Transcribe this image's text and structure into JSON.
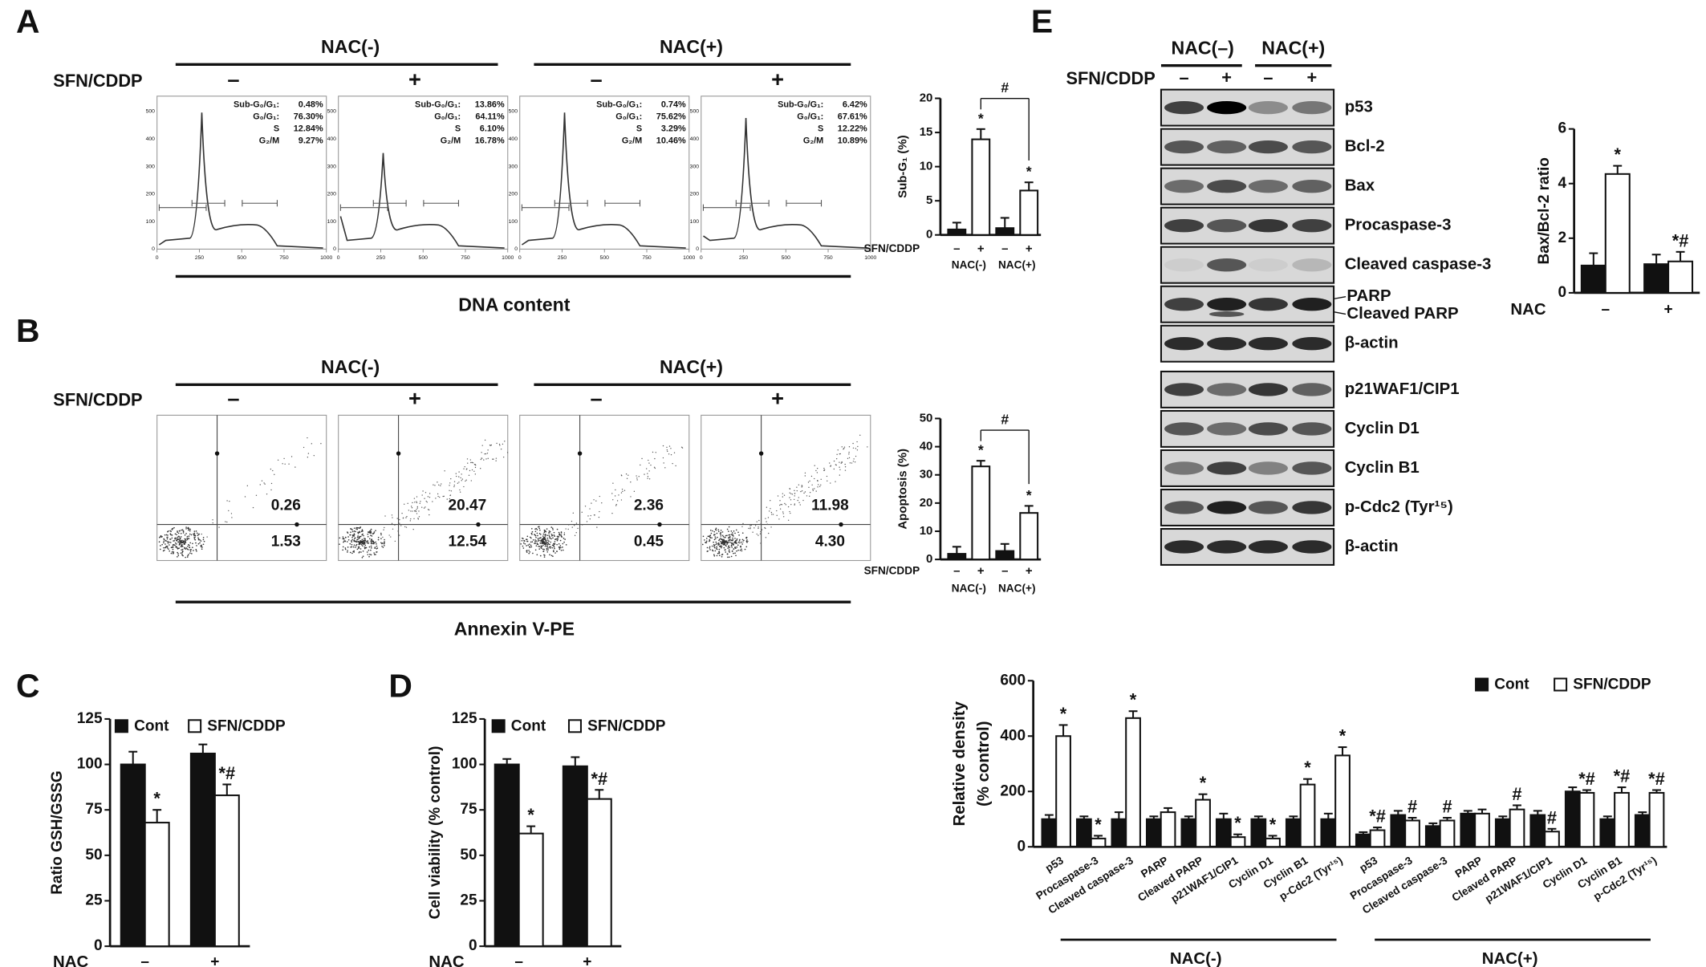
{
  "panel_labels": [
    "A",
    "B",
    "C",
    "D",
    "E"
  ],
  "panel_a": {
    "group_labels": [
      "NAC(-)",
      "NAC(+)"
    ],
    "treatment_label": "SFN/CDDP",
    "signs": [
      "–",
      "+",
      "–",
      "+"
    ],
    "histograms": [
      [
        {
          "label": "Sub-G₀/G₁:",
          "value": "0.48%"
        },
        {
          "label": "G₀/G₁:",
          "value": "76.30%"
        },
        {
          "label": "S",
          "value": "12.84%"
        },
        {
          "label": "G₂/M",
          "value": "9.27%"
        }
      ],
      [
        {
          "label": "Sub-G₀/G₁:",
          "value": "13.86%"
        },
        {
          "label": "G₀/G₁:",
          "value": "64.11%"
        },
        {
          "label": "S",
          "value": "6.10%"
        },
        {
          "label": "G₂/M",
          "value": "16.78%"
        }
      ],
      [
        {
          "label": "Sub-G₀/G₁:",
          "value": "0.74%"
        },
        {
          "label": "G₀/G₁:",
          "value": "75.62%"
        },
        {
          "label": "S",
          "value": "3.29%"
        },
        {
          "label": "G₂/M",
          "value": "10.46%"
        }
      ],
      [
        {
          "label": "Sub-G₀/G₁:",
          "value": "6.42%"
        },
        {
          "label": "G₀/G₁:",
          "value": "67.61%"
        },
        {
          "label": "S",
          "value": "12.22%"
        },
        {
          "label": "G₂/M",
          "value": "10.89%"
        }
      ]
    ],
    "histogram_xticks": [
      0,
      250,
      500,
      750,
      1000
    ],
    "histogram_yticks": [
      0,
      100,
      200,
      300,
      400,
      500
    ],
    "x_label": "DNA   content"
  },
  "panel_b": {
    "group_labels": [
      "NAC(-)",
      "NAC(+)"
    ],
    "treatment_label": "SFN/CDDP",
    "signs": [
      "–",
      "+",
      "–",
      "+"
    ],
    "quadrant_values": [
      [
        "0.26",
        "1.53"
      ],
      [
        "20.47",
        "12.54"
      ],
      [
        "2.36",
        "0.45"
      ],
      [
        "11.98",
        "4.30"
      ]
    ],
    "x_label": "Annexin V-PE"
  },
  "panel_e": {
    "group_labels": [
      "NAC(–)",
      "NAC(+)"
    ],
    "treatment_label": "SFN/CDDP",
    "signs": [
      "–",
      "+",
      "–",
      "+"
    ],
    "blots": [
      [
        [
          "p53"
        ],
        [
          "Bcl-2"
        ],
        [
          "Bax"
        ],
        [
          "Procaspase-3"
        ],
        [
          "Cleaved caspase-3"
        ],
        [
          "PARP",
          "Cleaved PARP"
        ],
        [
          "β-actin"
        ]
      ],
      [
        [
          "p21WAF1/CIP1"
        ],
        [
          "Cyclin D1"
        ],
        [
          "Cyclin B1"
        ],
        [
          "p-Cdc2 (Tyr¹⁵)"
        ],
        [
          "β-actin"
        ]
      ]
    ]
  },
  "chart_data": [
    {
      "type": "bar",
      "ylabel": "Sub-G₁ (%)",
      "ylim": [
        0,
        20
      ],
      "yticks": [
        0,
        5,
        10,
        15,
        20
      ],
      "row_label": "SFN/CDDP",
      "categories": [
        "–",
        "+",
        "–",
        "+"
      ],
      "groups": [
        "NAC(-)",
        "NAC(+)"
      ],
      "values": [
        0.8,
        14,
        1,
        6.5
      ],
      "errors": [
        1,
        1.5,
        1.5,
        1.2
      ],
      "colors": [
        "#111111",
        "#ffffff",
        "#111111",
        "#ffffff"
      ],
      "significance": [
        null,
        "*",
        null,
        "*"
      ],
      "bracket_label": "#"
    },
    {
      "type": "bar",
      "ylabel": "Apoptosis (%)",
      "ylim": [
        0,
        50
      ],
      "yticks": [
        0,
        10,
        20,
        30,
        40,
        50
      ],
      "row_label": "SFN/CDDP",
      "categories": [
        "–",
        "+",
        "–",
        "+"
      ],
      "groups": [
        "NAC(-)",
        "NAC(+)"
      ],
      "values": [
        2,
        33,
        3,
        16.5
      ],
      "errors": [
        2.5,
        2,
        2.5,
        2.5
      ],
      "colors": [
        "#111111",
        "#ffffff",
        "#111111",
        "#ffffff"
      ],
      "significance": [
        null,
        "*",
        null,
        "*"
      ],
      "bracket_label": "#"
    },
    {
      "type": "bar",
      "ylabel": "Ratio GSH/GSSG",
      "ylim": [
        0,
        125
      ],
      "yticks": [
        0,
        25,
        50,
        75,
        100,
        125
      ],
      "row_label": "NAC",
      "categories": [
        "–",
        "+"
      ],
      "series": [
        {
          "name": "Cont",
          "color": "#111111",
          "values": [
            100,
            106
          ],
          "errors": [
            7,
            5
          ],
          "significance": [
            null,
            null
          ]
        },
        {
          "name": "SFN/CDDP",
          "color": "#ffffff",
          "values": [
            68,
            83
          ],
          "errors": [
            7,
            6
          ],
          "significance": [
            "*",
            "*#"
          ]
        }
      ]
    },
    {
      "type": "bar",
      "ylabel": "Cell viability (% control)",
      "ylim": [
        0,
        125
      ],
      "yticks": [
        0,
        25,
        50,
        75,
        100,
        125
      ],
      "row_label": "NAC",
      "categories": [
        "–",
        "+"
      ],
      "series": [
        {
          "name": "Cont",
          "color": "#111111",
          "values": [
            100,
            99
          ],
          "errors": [
            3,
            5
          ],
          "significance": [
            null,
            null
          ]
        },
        {
          "name": "SFN/CDDP",
          "color": "#ffffff",
          "values": [
            62,
            81
          ],
          "errors": [
            4,
            5
          ],
          "significance": [
            "*",
            "*#"
          ]
        }
      ]
    },
    {
      "type": "bar",
      "ylabel": "Bax/Bcl-2 ratio",
      "ylim": [
        0,
        6
      ],
      "yticks": [
        0,
        2,
        4,
        6
      ],
      "row_label": "NAC",
      "categories": [
        "–",
        "+"
      ],
      "series": [
        {
          "name": null,
          "color": "#111111",
          "values": [
            1,
            1.05
          ],
          "errors": [
            0.45,
            0.35
          ],
          "significance": [
            null,
            null
          ]
        },
        {
          "name": null,
          "color": "#ffffff",
          "values": [
            4.35,
            1.15
          ],
          "errors": [
            0.3,
            0.35
          ],
          "significance": [
            "*",
            "*#"
          ]
        }
      ]
    },
    {
      "type": "bar",
      "ylabel": [
        "Relative density",
        "(% control)"
      ],
      "ylim": [
        0,
        600
      ],
      "yticks": [
        0,
        200,
        400,
        600
      ],
      "categories": [
        "p53",
        "Procaspase-3",
        "Cleaved caspase-3",
        "PARP",
        "Cleaved PARP",
        "p21WAF1/CIP1",
        "Cyclin D1",
        "Cyclin B1",
        "p-Cdc2 (Tyr¹⁵)",
        "p53",
        "Procaspase-3",
        "Cleaved caspase-3",
        "PARP",
        "Cleaved PARP",
        "p21WAF1/CIP1",
        "Cyclin D1",
        "Cyclin B1",
        "p-Cdc2 (Tyr¹⁵)"
      ],
      "groups": [
        "NAC(-)",
        "NAC(+)"
      ],
      "series": [
        {
          "name": "Cont",
          "color": "#111111",
          "values": [
            100,
            100,
            100,
            100,
            100,
            100,
            100,
            100,
            100,
            45,
            115,
            75,
            120,
            100,
            115,
            200,
            100,
            115
          ],
          "errors": [
            15,
            10,
            25,
            10,
            10,
            20,
            10,
            10,
            20,
            8,
            15,
            10,
            10,
            10,
            15,
            15,
            10,
            10
          ],
          "significance": [
            null,
            null,
            null,
            null,
            null,
            null,
            null,
            null,
            null,
            null,
            null,
            null,
            null,
            null,
            null,
            null,
            null,
            null
          ]
        },
        {
          "name": "SFN/CDDP",
          "color": "#ffffff",
          "values": [
            400,
            30,
            465,
            125,
            170,
            35,
            30,
            225,
            330,
            60,
            95,
            95,
            120,
            135,
            55,
            195,
            195,
            195
          ],
          "errors": [
            40,
            10,
            25,
            15,
            20,
            10,
            10,
            20,
            30,
            10,
            10,
            10,
            15,
            15,
            10,
            10,
            20,
            10
          ],
          "significance": [
            "*",
            "*",
            "*",
            null,
            "*",
            "*",
            "*",
            "*",
            "*",
            "*#",
            "#",
            "#",
            null,
            "#",
            "#",
            "*#",
            "*#",
            "*#"
          ]
        }
      ]
    }
  ]
}
